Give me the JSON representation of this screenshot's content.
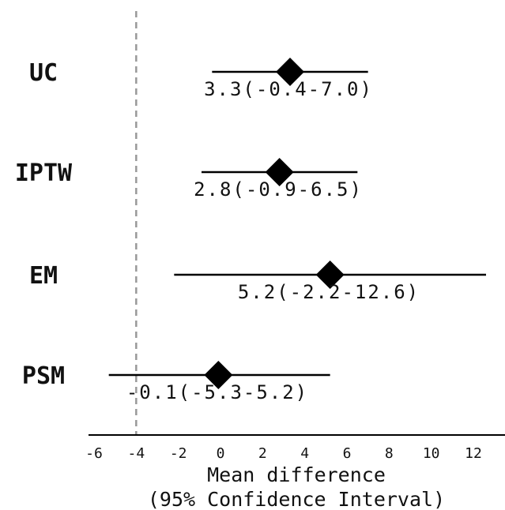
{
  "chart_data": {
    "type": "forest",
    "xlabel_line1": "Mean difference",
    "xlabel_line2": "(95% Confidence Interval)",
    "xlim": [
      -6.3,
      13.5
    ],
    "xticks": [
      -6,
      -4,
      -2,
      0,
      2,
      4,
      6,
      8,
      10,
      12
    ],
    "xtick_labels": [
      "-6",
      "-4",
      "-2",
      "0",
      "2",
      "4",
      "6",
      "8",
      "10",
      "12"
    ],
    "reference_line": -4,
    "reference_line_style": "dashed",
    "marker": "diamond",
    "rows": [
      {
        "label": "UC",
        "estimate": 3.3,
        "lower": -0.4,
        "upper": 7.0,
        "text": "3.3(-0.4-7.0)"
      },
      {
        "label": "IPTW",
        "estimate": 2.8,
        "lower": -0.9,
        "upper": 6.5,
        "text": "2.8(-0.9-6.5)"
      },
      {
        "label": "EM",
        "estimate": 5.2,
        "lower": -2.2,
        "upper": 12.6,
        "text": "5.2(-2.2-12.6)"
      },
      {
        "label": "PSM",
        "estimate": -0.1,
        "lower": -5.3,
        "upper": 5.2,
        "text": "-0.1(-5.3-5.2)"
      }
    ],
    "colors": {
      "line": "#000000",
      "marker": "#000000",
      "reference": "#999999"
    }
  }
}
